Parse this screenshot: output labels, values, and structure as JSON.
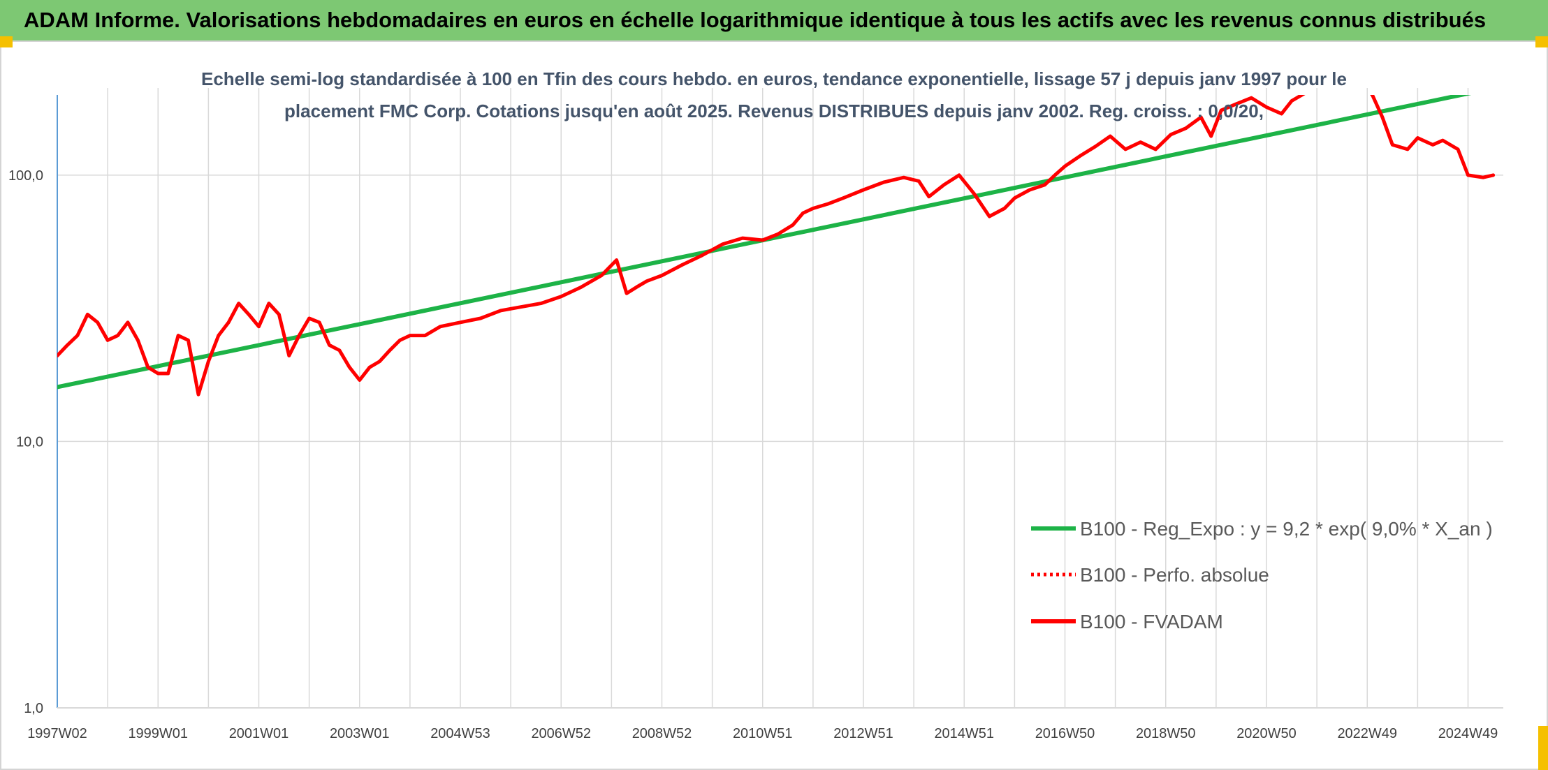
{
  "page": {
    "title": "ADAM Informe. Valorisations hebdomadaires en euros en échelle logarithmique identique à tous les actifs avec les revenus connus distribués",
    "title_bg": "#7dc873",
    "corner_color": "#f5c000"
  },
  "chart_data": {
    "type": "line",
    "title_lines": [
      "Echelle semi-log standardisée à 100 en Tfin des cours hebdo. en euros, tendance exponentielle, lissage 57 j depuis janv 1997 pour le",
      "placement FMC Corp. Cotations jusqu'en août 2025. Revenus DISTRIBUES depuis janv 2002. Reg. croiss. : 0,0/20,"
    ],
    "y_scale": "log",
    "ylim": [
      1,
      200
    ],
    "y_ticks": [
      {
        "value": 1,
        "label": "1,0"
      },
      {
        "value": 10,
        "label": "10,0"
      },
      {
        "value": 100,
        "label": "100,0"
      }
    ],
    "xlim": [
      1997.0,
      2025.7
    ],
    "x_ticks": [
      {
        "value": 1997.0,
        "label": "1997W02"
      },
      {
        "value": 1999.0,
        "label": "1999W01"
      },
      {
        "value": 2001.0,
        "label": "2001W01"
      },
      {
        "value": 2003.0,
        "label": "2003W01"
      },
      {
        "value": 2005.0,
        "label": "2004W53"
      },
      {
        "value": 2007.0,
        "label": "2006W52"
      },
      {
        "value": 2009.0,
        "label": "2008W52"
      },
      {
        "value": 2011.0,
        "label": "2010W51"
      },
      {
        "value": 2013.0,
        "label": "2012W51"
      },
      {
        "value": 2015.0,
        "label": "2014W51"
      },
      {
        "value": 2017.0,
        "label": "2016W50"
      },
      {
        "value": 2019.0,
        "label": "2018W50"
      },
      {
        "value": 2021.0,
        "label": "2020W50"
      },
      {
        "value": 2023.0,
        "label": "2022W49"
      },
      {
        "value": 2025.0,
        "label": "2024W49"
      }
    ],
    "x_gridlines": [
      1998.0,
      2000.0,
      2002.0,
      2004.0,
      2006.0,
      2008.0,
      2010.0,
      2012.0,
      2014.0,
      2016.0,
      2018.0,
      2020.0,
      2022.0,
      2024.0
    ],
    "grid": true,
    "legend_position": "lower-right",
    "series": [
      {
        "name": "B100 - Reg_Expo : y = 9,2 * exp( 9,0% *  X_an )",
        "color": "#1db347",
        "style": "solid",
        "x": [
          1997.0,
          2025.4
        ],
        "y": [
          16,
          210
        ]
      },
      {
        "name": "B100 - Perfo. absolue",
        "color": "#ff0000",
        "style": "dotted",
        "x": [],
        "y": []
      },
      {
        "name": "B100 - FVADAM",
        "color": "#ff0000",
        "style": "solid",
        "x": [
          1997.0,
          1997.2,
          1997.4,
          1997.6,
          1997.8,
          1998.0,
          1998.2,
          1998.4,
          1998.6,
          1998.8,
          1999.0,
          1999.2,
          1999.4,
          1999.6,
          1999.8,
          2000.0,
          2000.2,
          2000.4,
          2000.6,
          2000.8,
          2001.0,
          2001.2,
          2001.4,
          2001.6,
          2001.8,
          2002.0,
          2002.2,
          2002.4,
          2002.6,
          2002.8,
          2003.0,
          2003.2,
          2003.4,
          2003.6,
          2003.8,
          2004.0,
          2004.3,
          2004.6,
          2005.0,
          2005.4,
          2005.8,
          2006.2,
          2006.6,
          2007.0,
          2007.4,
          2007.8,
          2008.1,
          2008.3,
          2008.5,
          2008.7,
          2009.0,
          2009.4,
          2009.8,
          2010.2,
          2010.6,
          2011.0,
          2011.3,
          2011.6,
          2011.8,
          2012.0,
          2012.3,
          2012.6,
          2013.0,
          2013.4,
          2013.8,
          2014.1,
          2014.3,
          2014.6,
          2014.9,
          2015.2,
          2015.5,
          2015.8,
          2016.0,
          2016.3,
          2016.6,
          2016.8,
          2017.0,
          2017.3,
          2017.6,
          2017.9,
          2018.2,
          2018.5,
          2018.8,
          2019.1,
          2019.4,
          2019.7,
          2019.9,
          2020.1,
          2020.4,
          2020.7,
          2021.0,
          2021.3,
          2021.5,
          2021.8,
          2022.0,
          2022.3,
          2022.6,
          2022.9,
          2023.1,
          2023.3,
          2023.5,
          2023.8,
          2024.0,
          2024.3,
          2024.5,
          2024.8,
          2025.0,
          2025.3,
          2025.5
        ],
        "y": [
          21,
          23,
          25,
          30,
          28,
          24,
          25,
          28,
          24,
          19,
          18,
          18,
          25,
          24,
          15,
          20,
          25,
          28,
          33,
          30,
          27,
          33,
          30,
          21,
          25,
          29,
          28,
          23,
          22,
          19,
          17,
          19,
          20,
          22,
          24,
          25,
          25,
          27,
          28,
          29,
          31,
          32,
          33,
          35,
          38,
          42,
          48,
          36,
          38,
          40,
          42,
          46,
          50,
          55,
          58,
          57,
          60,
          65,
          72,
          75,
          78,
          82,
          88,
          94,
          98,
          95,
          83,
          92,
          100,
          85,
          70,
          75,
          82,
          88,
          92,
          100,
          108,
          118,
          128,
          140,
          125,
          133,
          125,
          142,
          150,
          165,
          140,
          175,
          185,
          195,
          180,
          170,
          190,
          205,
          215,
          225,
          230,
          220,
          200,
          165,
          130,
          125,
          138,
          130,
          135,
          125,
          100,
          98,
          100
        ]
      }
    ]
  }
}
